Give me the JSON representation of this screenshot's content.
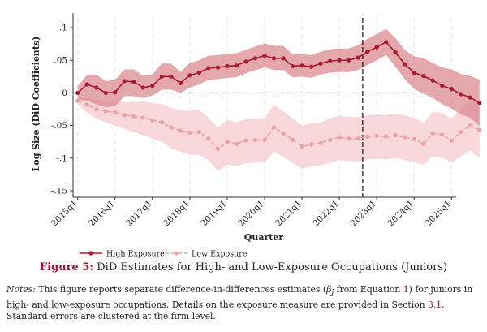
{
  "chart_data": {
    "type": "line",
    "title": "",
    "xlabel": "Quarter",
    "ylabel": "Log Size (DiD Coefficients)",
    "ylim": [
      -0.16,
      0.115
    ],
    "yticks": [
      0.1,
      0.05,
      0,
      -0.05,
      -0.1,
      -0.15
    ],
    "ytick_labels": [
      ".1",
      ".05",
      "0",
      "-.05",
      "-.1",
      "-.15"
    ],
    "xticks": [
      0,
      4,
      8,
      12,
      16,
      20,
      24,
      28,
      32,
      36,
      40
    ],
    "xtick_labels": [
      "2015q1",
      "2016q1",
      "2017q1",
      "2018q1",
      "2019q1",
      "2020q1",
      "2021q1",
      "2022q1",
      "2023q1",
      "2024q1",
      "2025q1"
    ],
    "xlim": [
      -0.5,
      40.5
    ],
    "vline_x": 30.5,
    "grid": "vertical dashed",
    "legend_position": "bottom-left",
    "series": [
      {
        "name": "High Exposure",
        "color": "#a61c30",
        "band_color": "#d98a90",
        "style": "solid",
        "values": [
          0,
          0.013,
          0.008,
          0,
          0.001,
          0.018,
          0.017,
          0.008,
          0.011,
          0.025,
          0.025,
          0.015,
          0.027,
          0.031,
          0.038,
          0.039,
          0.041,
          0.042,
          0.048,
          0.053,
          0.057,
          0.053,
          0.053,
          0.041,
          0.042,
          0.04,
          0.045,
          0.049,
          0.05,
          0.05,
          0.054,
          0.063,
          0.07,
          0.078,
          0.062,
          0.044,
          0.031,
          0.026,
          0.019,
          0.011,
          0.006,
          -0.002,
          -0.007,
          -0.015
        ],
        "lower": [
          -0.01,
          -0.012,
          -0.018,
          -0.022,
          -0.02,
          -0.005,
          -0.005,
          -0.008,
          -0.004,
          0.005,
          0.005,
          0,
          0.008,
          0.013,
          0.02,
          0.021,
          0.023,
          0.024,
          0.03,
          0.035,
          0.039,
          0.035,
          0.035,
          0.024,
          0.025,
          0.023,
          0.028,
          0.031,
          0.032,
          0.032,
          0.035,
          0.043,
          0.05,
          0.058,
          0.04,
          0.021,
          0.006,
          -0.001,
          -0.008,
          -0.017,
          -0.024,
          -0.033,
          -0.038,
          -0.05
        ],
        "upper": [
          0.01,
          0.028,
          0.028,
          0.018,
          0.02,
          0.036,
          0.036,
          0.026,
          0.028,
          0.045,
          0.045,
          0.032,
          0.046,
          0.05,
          0.057,
          0.058,
          0.06,
          0.061,
          0.066,
          0.071,
          0.076,
          0.072,
          0.072,
          0.059,
          0.06,
          0.058,
          0.063,
          0.067,
          0.068,
          0.068,
          0.073,
          0.083,
          0.09,
          0.098,
          0.084,
          0.066,
          0.056,
          0.053,
          0.046,
          0.039,
          0.036,
          0.029,
          0.026,
          0.02
        ]
      },
      {
        "name": "Low Exposure",
        "color": "#e8a3a8",
        "band_color": "#f7d3d5",
        "style": "dashed",
        "values": [
          -0.012,
          -0.018,
          -0.025,
          -0.028,
          -0.03,
          -0.034,
          -0.036,
          -0.038,
          -0.042,
          -0.045,
          -0.053,
          -0.058,
          -0.061,
          -0.06,
          -0.07,
          -0.086,
          -0.075,
          -0.078,
          -0.073,
          -0.072,
          -0.072,
          -0.053,
          -0.062,
          -0.072,
          -0.082,
          -0.079,
          -0.077,
          -0.072,
          -0.068,
          -0.07,
          -0.07,
          -0.067,
          -0.066,
          -0.067,
          -0.065,
          -0.068,
          -0.071,
          -0.078,
          -0.062,
          -0.064,
          -0.073,
          -0.06,
          -0.05,
          -0.057
        ],
        "lower": [
          -0.018,
          -0.03,
          -0.04,
          -0.045,
          -0.05,
          -0.055,
          -0.06,
          -0.065,
          -0.07,
          -0.075,
          -0.085,
          -0.09,
          -0.095,
          -0.095,
          -0.103,
          -0.12,
          -0.11,
          -0.112,
          -0.108,
          -0.107,
          -0.107,
          -0.09,
          -0.098,
          -0.107,
          -0.116,
          -0.113,
          -0.111,
          -0.107,
          -0.103,
          -0.105,
          -0.105,
          -0.102,
          -0.101,
          -0.102,
          -0.1,
          -0.103,
          -0.106,
          -0.11,
          -0.097,
          -0.099,
          -0.107,
          -0.097,
          -0.088,
          -0.1
        ],
        "upper": [
          -0.006,
          -0.006,
          -0.01,
          -0.012,
          -0.012,
          -0.014,
          -0.014,
          -0.013,
          -0.016,
          -0.017,
          -0.023,
          -0.027,
          -0.028,
          -0.026,
          -0.038,
          -0.054,
          -0.042,
          -0.045,
          -0.04,
          -0.039,
          -0.039,
          -0.018,
          -0.028,
          -0.039,
          -0.05,
          -0.047,
          -0.045,
          -0.039,
          -0.035,
          -0.037,
          -0.037,
          -0.034,
          -0.033,
          -0.034,
          -0.032,
          -0.035,
          -0.038,
          -0.046,
          -0.029,
          -0.031,
          -0.04,
          -0.025,
          -0.014,
          -0.016
        ]
      }
    ]
  },
  "legend": {
    "high_label": "High Exposure",
    "low_label": "Low Exposure"
  },
  "caption": {
    "label": "Figure 5:",
    "text": " DiD Estimates for High- and Low-Exposure Occupations (Juniors)"
  },
  "notes": {
    "label": "Notes:",
    "text_1": " This figure reports separate difference-in-differences estimates (",
    "beta": "β",
    "sub": "j",
    "text_2": " from Equation ",
    "eq_ref": "1",
    "text_3": ") for juniors in high- and low-exposure occupations. Details on the exposure measure are provided in Section ",
    "sec_ref": "3.1",
    "text_4": ". Standard errors are clustered at the firm level."
  }
}
